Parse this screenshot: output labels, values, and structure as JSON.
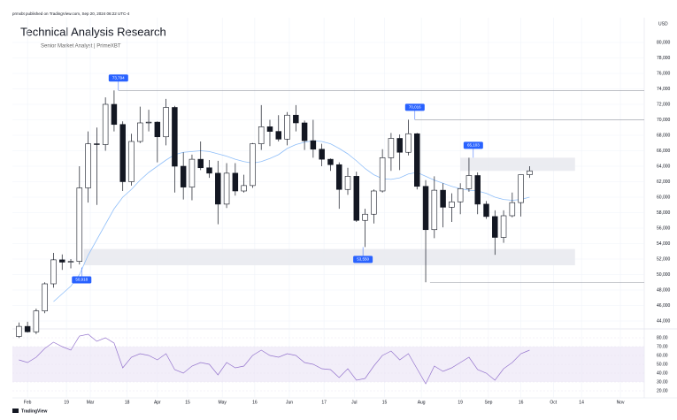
{
  "header": {
    "publisher": "prmxbt published on TradingView.com, Sep 20, 2024 06:22 UTC-4",
    "logo": "TradingView"
  },
  "chart_data": {
    "type": "candlestick",
    "title": "Technical Analysis Research",
    "subtitle": "Senior Market Analyst | PrimeXBT",
    "currency": "USD",
    "x": [
      "2024-01-28",
      "2024-02-01",
      "2024-02-05",
      "2024-02-09",
      "2024-02-13",
      "2024-02-17",
      "2024-02-21",
      "2024-02-25",
      "2024-02-29",
      "2024-03-04",
      "2024-03-08",
      "2024-03-12",
      "2024-03-16",
      "2024-03-20",
      "2024-03-24",
      "2024-03-28",
      "2024-04-01",
      "2024-04-05",
      "2024-04-09",
      "2024-04-13",
      "2024-04-17",
      "2024-04-21",
      "2024-04-25",
      "2024-04-29",
      "2024-05-03",
      "2024-05-07",
      "2024-05-11",
      "2024-05-15",
      "2024-05-19",
      "2024-05-23",
      "2024-05-27",
      "2024-05-31",
      "2024-06-04",
      "2024-06-08",
      "2024-06-12",
      "2024-06-16",
      "2024-06-20",
      "2024-06-24",
      "2024-06-28",
      "2024-07-02",
      "2024-07-06",
      "2024-07-10",
      "2024-07-14",
      "2024-07-18",
      "2024-07-22",
      "2024-07-26",
      "2024-07-30",
      "2024-08-03",
      "2024-08-07",
      "2024-08-11",
      "2024-08-15",
      "2024-08-19",
      "2024-08-23",
      "2024-08-27",
      "2024-08-31",
      "2024-09-04",
      "2024-09-08",
      "2024-09-12",
      "2024-09-16",
      "2024-09-20"
    ],
    "open": [
      42000,
      43300,
      42600,
      45300,
      48800,
      51900,
      51600,
      51700,
      61200,
      66900,
      66800,
      72000,
      69400,
      62000,
      67200,
      69600,
      69700,
      67800,
      71600,
      64000,
      61300,
      64900,
      63800,
      63100,
      59100,
      63100,
      60800,
      61500,
      66900,
      69100,
      68500,
      67500,
      70600,
      69600,
      67300,
      66200,
      64900,
      64200,
      61000,
      62700,
      57000,
      57800,
      60800,
      65100,
      67600,
      65800,
      68200,
      61400,
      55800,
      60900,
      58700,
      59400,
      61100,
      62800,
      59100,
      57500,
      54800,
      57600,
      59300,
      62900
    ],
    "high": [
      43800,
      43900,
      45600,
      49000,
      52800,
      52600,
      52000,
      64000,
      68500,
      69000,
      72900,
      73794,
      69800,
      68200,
      71700,
      71300,
      69800,
      72700,
      71800,
      65800,
      65500,
      67200,
      64800,
      64700,
      64400,
      64400,
      62900,
      67000,
      71900,
      70000,
      70600,
      71000,
      71900,
      69900,
      70000,
      66900,
      65000,
      64500,
      63800,
      63300,
      58500,
      61000,
      66200,
      68300,
      68100,
      70016,
      68300,
      62200,
      62700,
      61800,
      60500,
      61800,
      65103,
      63200,
      59500,
      58300,
      58300,
      60600,
      62900,
      64000
    ],
    "low": [
      41800,
      42500,
      42300,
      45000,
      48300,
      50600,
      50800,
      51300,
      59300,
      59000,
      66000,
      68500,
      60800,
      61500,
      67000,
      68500,
      64500,
      66700,
      60600,
      59700,
      59600,
      63500,
      62500,
      56500,
      58600,
      60200,
      60600,
      61200,
      66100,
      66600,
      67200,
      66700,
      68500,
      66100,
      65100,
      64000,
      63400,
      58500,
      60300,
      56800,
      53550,
      56600,
      60600,
      63400,
      63500,
      65400,
      61000,
      49000,
      54700,
      56100,
      56800,
      57800,
      60700,
      57800,
      57200,
      52550,
      54100,
      57400,
      57500,
      62500
    ],
    "close": [
      43300,
      42600,
      45300,
      48800,
      51900,
      51600,
      51700,
      61200,
      66900,
      66800,
      72000,
      69400,
      62000,
      67200,
      69600,
      69700,
      67800,
      71600,
      64000,
      61300,
      64900,
      63800,
      63100,
      59100,
      63100,
      60800,
      61500,
      66900,
      69100,
      68500,
      67500,
      70600,
      69600,
      67300,
      66200,
      64900,
      64200,
      61000,
      62700,
      57000,
      57800,
      60800,
      65100,
      67600,
      65800,
      68200,
      61400,
      55800,
      60900,
      58700,
      59400,
      61100,
      62800,
      59100,
      57500,
      54800,
      57600,
      59300,
      62900,
      63400
    ],
    "up_color": "#ffffff",
    "down_color": "#131722",
    "wick_color": "#131722",
    "moving_average": {
      "color": "#90bff9",
      "values": [
        null,
        null,
        null,
        null,
        46500,
        47500,
        48500,
        50000,
        52500,
        54500,
        56500,
        58500,
        60000,
        61000,
        62200,
        63200,
        64000,
        64800,
        65500,
        65800,
        65900,
        66000,
        65900,
        65600,
        65300,
        64900,
        64600,
        64400,
        64600,
        65000,
        65500,
        66300,
        66800,
        67100,
        67300,
        67200,
        66900,
        66300,
        65600,
        64700,
        63700,
        62900,
        62400,
        62300,
        62500,
        63000,
        63200,
        62700,
        62200,
        61800,
        61400,
        61100,
        60900,
        60800,
        60500,
        60000,
        59700,
        59600,
        59700,
        60000
      ]
    },
    "xlim": [
      "2024-01-25",
      "2024-11-12"
    ],
    "xticks": [
      {
        "value": "2024-02-01",
        "label": "Feb"
      },
      {
        "value": "2024-02-19",
        "label": "19"
      },
      {
        "value": "2024-03-01",
        "label": "Mar"
      },
      {
        "value": "2024-03-18",
        "label": "18"
      },
      {
        "value": "2024-04-01",
        "label": "Apr"
      },
      {
        "value": "2024-04-15",
        "label": "15"
      },
      {
        "value": "2024-05-01",
        "label": "May"
      },
      {
        "value": "2024-05-16",
        "label": "16"
      },
      {
        "value": "2024-06-01",
        "label": "Jun"
      },
      {
        "value": "2024-06-17",
        "label": "17"
      },
      {
        "value": "2024-07-01",
        "label": "Jul"
      },
      {
        "value": "2024-07-15",
        "label": "15"
      },
      {
        "value": "2024-08-01",
        "label": "Aug"
      },
      {
        "value": "2024-08-19",
        "label": "19"
      },
      {
        "value": "2024-09-01",
        "label": "Sep"
      },
      {
        "value": "2024-09-16",
        "label": "16"
      },
      {
        "value": "2024-10-01",
        "label": "Oct"
      },
      {
        "value": "2024-10-14",
        "label": "14"
      },
      {
        "value": "2024-11-01",
        "label": "Nov"
      }
    ],
    "ylim": [
      43200,
      82970
    ],
    "yticks": [
      {
        "value": 44000,
        "label": "44,000"
      },
      {
        "value": 46000,
        "label": "46,000"
      },
      {
        "value": 48000,
        "label": "48,000"
      },
      {
        "value": 50000,
        "label": "50,000"
      },
      {
        "value": 52000,
        "label": "52,000"
      },
      {
        "value": 54000,
        "label": "54,000"
      },
      {
        "value": 56000,
        "label": "56,000"
      },
      {
        "value": 58000,
        "label": "58,000"
      },
      {
        "value": 60000,
        "label": "60,000"
      },
      {
        "value": 62000,
        "label": "62,000"
      },
      {
        "value": 64000,
        "label": "64,000"
      },
      {
        "value": 66000,
        "label": "66,000"
      },
      {
        "value": 68000,
        "label": "68,000"
      },
      {
        "value": 70000,
        "label": "70,000"
      },
      {
        "value": 72000,
        "label": "72,000"
      },
      {
        "value": 74000,
        "label": "74,000"
      },
      {
        "value": 76000,
        "label": "76,000"
      },
      {
        "value": 78000,
        "label": "78,000"
      },
      {
        "value": 80000,
        "label": "80,000"
      }
    ],
    "grid": true,
    "levels": [
      {
        "value": 73794,
        "from": "2024-03-14",
        "to": "2024-11-12"
      },
      {
        "value": 70016,
        "from": "2024-07-29",
        "to": "2024-11-12"
      },
      {
        "value": 49000,
        "from": "2024-08-05",
        "to": "2024-11-12"
      }
    ],
    "zones": [
      {
        "low": 63400,
        "high": 65103,
        "from": "2024-08-19",
        "to": "2024-10-11"
      },
      {
        "low": 51200,
        "high": 53300,
        "from": "2024-02-27",
        "to": "2024-10-11"
      }
    ],
    "annotations": [
      {
        "x": "2024-03-14",
        "value": 73794,
        "label": "73,794",
        "position": "above"
      },
      {
        "x": "2024-07-29",
        "value": 70016,
        "label": "70,016",
        "position": "above"
      },
      {
        "x": "2024-08-25",
        "value": 65103,
        "label": "65,103",
        "position": "above"
      },
      {
        "x": "2024-07-05",
        "value": 53550,
        "label": "53,550",
        "position": "below"
      },
      {
        "x": "2024-02-26",
        "value": 50918,
        "label": "50,918",
        "position": "below"
      }
    ],
    "rsi": {
      "color": "#9575cd",
      "band": [
        30,
        70
      ],
      "ylim": [
        14,
        86
      ],
      "values": [
        55,
        52,
        58,
        68,
        75,
        70,
        66,
        82,
        84,
        76,
        80,
        74,
        46,
        58,
        62,
        60,
        55,
        62,
        44,
        40,
        48,
        52,
        50,
        38,
        52,
        46,
        48,
        60,
        66,
        60,
        58,
        62,
        60,
        52,
        50,
        45,
        44,
        35,
        45,
        32,
        34,
        48,
        60,
        65,
        55,
        62,
        45,
        28,
        48,
        42,
        46,
        52,
        58,
        44,
        40,
        32,
        45,
        52,
        62,
        66
      ],
      "yticks": [
        {
          "value": 80,
          "label": "80.00"
        },
        {
          "value": 70,
          "label": "70.00"
        },
        {
          "value": 60,
          "label": "60.00"
        },
        {
          "value": 50,
          "label": "50.00"
        },
        {
          "value": 40,
          "label": "40.00"
        },
        {
          "value": 30,
          "label": "30.00"
        },
        {
          "value": 20,
          "label": "20.00"
        }
      ]
    }
  }
}
